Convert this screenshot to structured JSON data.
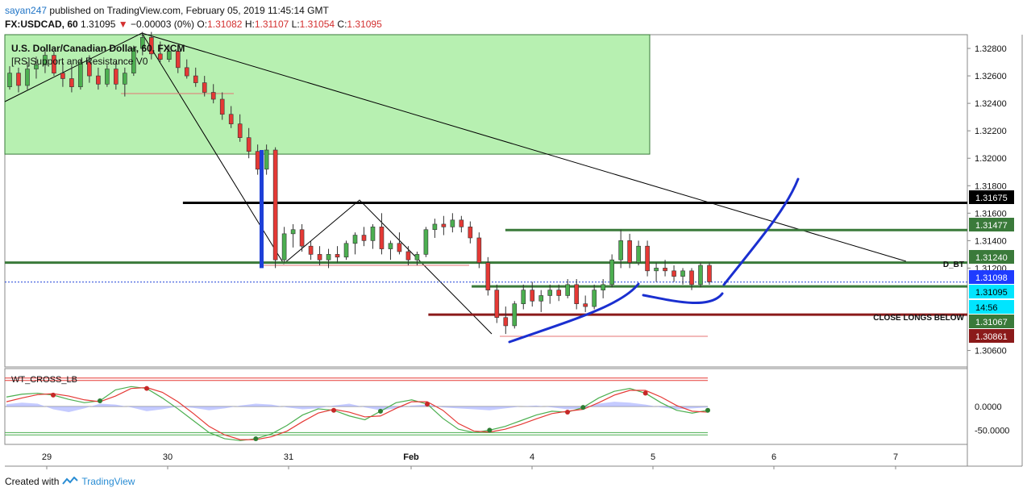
{
  "header": {
    "publisher": "sayan247",
    "published_text": "published on TradingView.com, February 05, 2019 11:45:14 GMT",
    "symbol": "FX:USDCAD, 60",
    "last": "1.31095",
    "change_arrow": "▼",
    "change": "−0.00003 (0%)",
    "o_label": "O:",
    "o": "1.31082",
    "h_label": "H:",
    "h": "1.31107",
    "l_label": "L:",
    "l": "1.31054",
    "c_label": "C:",
    "c": "1.31095"
  },
  "overlay": {
    "instrument": "U.S. Dollar/Canadian Dollar, 60, FXCM",
    "indicator": "[RS]Support and Resistance V0",
    "lower_indicator": "WT_CROSS_LB"
  },
  "footer": {
    "created_with": "Created with",
    "brand": "TradingView"
  },
  "colors": {
    "up": "#4caf50",
    "down": "#e53935",
    "zone": "#b7f0b1",
    "support": "#3a7a3a",
    "resistance": "#000000",
    "close_longs": "#8b1a1a",
    "current": "#1e40d8",
    "drawing": "#1a2fd0"
  },
  "chart_data": [
    {
      "type": "candlestick",
      "title": "U.S. Dollar/Canadian Dollar, 60, FXCM",
      "x_ticks": [
        "29",
        "30",
        "31",
        "Feb",
        "4",
        "5",
        "6",
        "7"
      ],
      "ylim": [
        1.3048,
        1.329
      ],
      "y_ticks": [
        "1.32800",
        "1.32600",
        "1.32400",
        "1.32200",
        "1.32000",
        "1.31800",
        "1.31600",
        "1.31400",
        "1.31200",
        "1.30600"
      ],
      "price_labels": [
        {
          "value": "1.31675",
          "kind": "resistance"
        },
        {
          "value": "1.31477",
          "kind": "support"
        },
        {
          "value": "1.31240",
          "kind": "support"
        },
        {
          "value": "1.31098",
          "kind": "current"
        },
        {
          "value": "1.31095",
          "kind": "last"
        },
        {
          "value": "14:56",
          "kind": "countdown"
        },
        {
          "value": "1.31067",
          "kind": "support"
        },
        {
          "value": "1.30861",
          "kind": "close_longs"
        }
      ],
      "levels": [
        {
          "price": 1.31675,
          "kind": "resistance",
          "from": 0.185
        },
        {
          "price": 1.31477,
          "kind": "support",
          "from": 0.52
        },
        {
          "price": 1.3124,
          "kind": "support",
          "from": 0.0
        },
        {
          "price": 1.31098,
          "kind": "current",
          "from": 0.0
        },
        {
          "price": 1.31067,
          "kind": "support",
          "from": 0.485
        },
        {
          "price": 1.30861,
          "kind": "close_longs",
          "from": 0.44
        }
      ],
      "zone": {
        "top": 1.329,
        "bottom": 1.3203,
        "to_x": 0.67
      },
      "annotations": [
        "D_BT",
        "CLOSE LONGS BELOW"
      ],
      "candles": [
        [
          1.3252,
          1.3267,
          1.325,
          1.3262
        ],
        [
          1.3262,
          1.3266,
          1.3248,
          1.3253
        ],
        [
          1.3253,
          1.327,
          1.325,
          1.3265
        ],
        [
          1.3265,
          1.3274,
          1.3258,
          1.3268
        ],
        [
          1.3268,
          1.328,
          1.3262,
          1.3275
        ],
        [
          1.3275,
          1.3278,
          1.326,
          1.3262
        ],
        [
          1.3262,
          1.327,
          1.3252,
          1.3258
        ],
        [
          1.3258,
          1.3268,
          1.3248,
          1.3252
        ],
        [
          1.3252,
          1.3272,
          1.325,
          1.327
        ],
        [
          1.327,
          1.3275,
          1.3255,
          1.326
        ],
        [
          1.326,
          1.3266,
          1.325,
          1.3254
        ],
        [
          1.3254,
          1.3268,
          1.3252,
          1.3265
        ],
        [
          1.3265,
          1.327,
          1.325,
          1.3254
        ],
        [
          1.3254,
          1.3266,
          1.3245,
          1.3262
        ],
        [
          1.3262,
          1.3282,
          1.326,
          1.328
        ],
        [
          1.328,
          1.3292,
          1.3275,
          1.3288
        ],
        [
          1.3288,
          1.3292,
          1.3272,
          1.3276
        ],
        [
          1.3276,
          1.3285,
          1.327,
          1.3272
        ],
        [
          1.3272,
          1.3282,
          1.327,
          1.3278
        ],
        [
          1.3278,
          1.328,
          1.3262,
          1.3266
        ],
        [
          1.3266,
          1.3272,
          1.3258,
          1.326
        ],
        [
          1.326,
          1.3266,
          1.3252,
          1.3255
        ],
        [
          1.3255,
          1.326,
          1.3245,
          1.3248
        ],
        [
          1.3248,
          1.3254,
          1.324,
          1.3243
        ],
        [
          1.3243,
          1.3248,
          1.3228,
          1.3232
        ],
        [
          1.3232,
          1.3238,
          1.3222,
          1.3225
        ],
        [
          1.3225,
          1.3232,
          1.3212,
          1.3215
        ],
        [
          1.3215,
          1.3222,
          1.32,
          1.3205
        ],
        [
          1.3205,
          1.321,
          1.3188,
          1.3192
        ],
        [
          1.3192,
          1.321,
          1.3188,
          1.3206
        ],
        [
          1.3206,
          1.3208,
          1.312,
          1.3126
        ],
        [
          1.3126,
          1.315,
          1.3124,
          1.3145
        ],
        [
          1.3145,
          1.3152,
          1.3135,
          1.3148
        ],
        [
          1.3148,
          1.3152,
          1.3132,
          1.3136
        ],
        [
          1.3136,
          1.314,
          1.3126,
          1.313
        ],
        [
          1.313,
          1.3136,
          1.3122,
          1.3126
        ],
        [
          1.3126,
          1.3134,
          1.312,
          1.313
        ],
        [
          1.313,
          1.3136,
          1.3124,
          1.3128
        ],
        [
          1.3128,
          1.314,
          1.3126,
          1.3138
        ],
        [
          1.3138,
          1.3146,
          1.313,
          1.3144
        ],
        [
          1.3144,
          1.315,
          1.3136,
          1.314
        ],
        [
          1.314,
          1.3152,
          1.3134,
          1.315
        ],
        [
          1.315,
          1.316,
          1.313,
          1.3134
        ],
        [
          1.3134,
          1.314,
          1.3126,
          1.3138
        ],
        [
          1.3138,
          1.3146,
          1.313,
          1.3132
        ],
        [
          1.3132,
          1.3136,
          1.3122,
          1.3126
        ],
        [
          1.3126,
          1.3132,
          1.3122,
          1.313
        ],
        [
          1.313,
          1.315,
          1.3128,
          1.3148
        ],
        [
          1.3148,
          1.3156,
          1.3142,
          1.3152
        ],
        [
          1.3152,
          1.3158,
          1.3144,
          1.315
        ],
        [
          1.315,
          1.316,
          1.3146,
          1.3155
        ],
        [
          1.3155,
          1.3158,
          1.3146,
          1.315
        ],
        [
          1.315,
          1.3154,
          1.3138,
          1.3142
        ],
        [
          1.3142,
          1.3146,
          1.312,
          1.3124
        ],
        [
          1.3124,
          1.3128,
          1.31,
          1.3104
        ],
        [
          1.3104,
          1.3108,
          1.308,
          1.3084
        ],
        [
          1.3084,
          1.3092,
          1.3072,
          1.3078
        ],
        [
          1.3078,
          1.3096,
          1.3076,
          1.3094
        ],
        [
          1.3094,
          1.3108,
          1.309,
          1.3104
        ],
        [
          1.3104,
          1.311,
          1.3092,
          1.3096
        ],
        [
          1.3096,
          1.3104,
          1.3088,
          1.31
        ],
        [
          1.31,
          1.3108,
          1.3094,
          1.3104
        ],
        [
          1.3104,
          1.3108,
          1.3096,
          1.31
        ],
        [
          1.31,
          1.3112,
          1.3098,
          1.3108
        ],
        [
          1.3108,
          1.3112,
          1.309,
          1.3094
        ],
        [
          1.3094,
          1.31,
          1.3088,
          1.3092
        ],
        [
          1.3092,
          1.3108,
          1.309,
          1.3104
        ],
        [
          1.3104,
          1.3112,
          1.3098,
          1.3108
        ],
        [
          1.3108,
          1.313,
          1.3106,
          1.3126
        ],
        [
          1.3126,
          1.3148,
          1.312,
          1.314
        ],
        [
          1.314,
          1.3145,
          1.312,
          1.3124
        ],
        [
          1.3124,
          1.314,
          1.3122,
          1.3136
        ],
        [
          1.3136,
          1.314,
          1.3114,
          1.3118
        ],
        [
          1.3118,
          1.3124,
          1.311,
          1.312
        ],
        [
          1.312,
          1.3126,
          1.3114,
          1.3118
        ],
        [
          1.3118,
          1.3122,
          1.311,
          1.3114
        ],
        [
          1.3114,
          1.312,
          1.3108,
          1.3118
        ],
        [
          1.3118,
          1.312,
          1.3104,
          1.3108
        ],
        [
          1.3108,
          1.3124,
          1.3106,
          1.3122
        ],
        [
          1.3122,
          1.3124,
          1.3108,
          1.311
        ]
      ]
    },
    {
      "type": "line",
      "title": "WT_CROSS_LB",
      "y_ticks": [
        "0.0000",
        "-50.0000"
      ],
      "series": [
        {
          "values": [
            20,
            26,
            28,
            24,
            15,
            8,
            12,
            35,
            42,
            38,
            18,
            -5,
            -30,
            -55,
            -68,
            -72,
            -68,
            -58,
            -40,
            -18,
            -5,
            -8,
            -20,
            -28,
            -10,
            8,
            14,
            5,
            -25,
            -48,
            -55,
            -50,
            -42,
            -30,
            -18,
            -10,
            -12,
            -2,
            18,
            32,
            38,
            28,
            8,
            -8,
            -14,
            -8
          ]
        },
        {
          "values": [
            10,
            18,
            25,
            27,
            22,
            14,
            10,
            22,
            38,
            40,
            30,
            10,
            -15,
            -42,
            -60,
            -70,
            -70,
            -64,
            -52,
            -32,
            -14,
            -6,
            -12,
            -22,
            -20,
            -4,
            10,
            10,
            -8,
            -36,
            -52,
            -54,
            -48,
            -38,
            -26,
            -15,
            -10,
            -6,
            8,
            24,
            34,
            34,
            20,
            2,
            -10,
            -12
          ]
        },
        {
          "values": [
            5,
            8,
            6,
            -6,
            -12,
            -4,
            6,
            4,
            -2,
            -10,
            -6,
            0,
            -3,
            -8,
            -4,
            2,
            6,
            4,
            -2,
            -6,
            -4,
            2,
            6,
            -2,
            -8,
            -4,
            2,
            4,
            -2,
            -4,
            -6,
            -8,
            -4,
            0,
            2,
            -2,
            -6,
            -4,
            6,
            10,
            8,
            4,
            -2,
            -6,
            -4,
            -2
          ]
        }
      ]
    }
  ]
}
